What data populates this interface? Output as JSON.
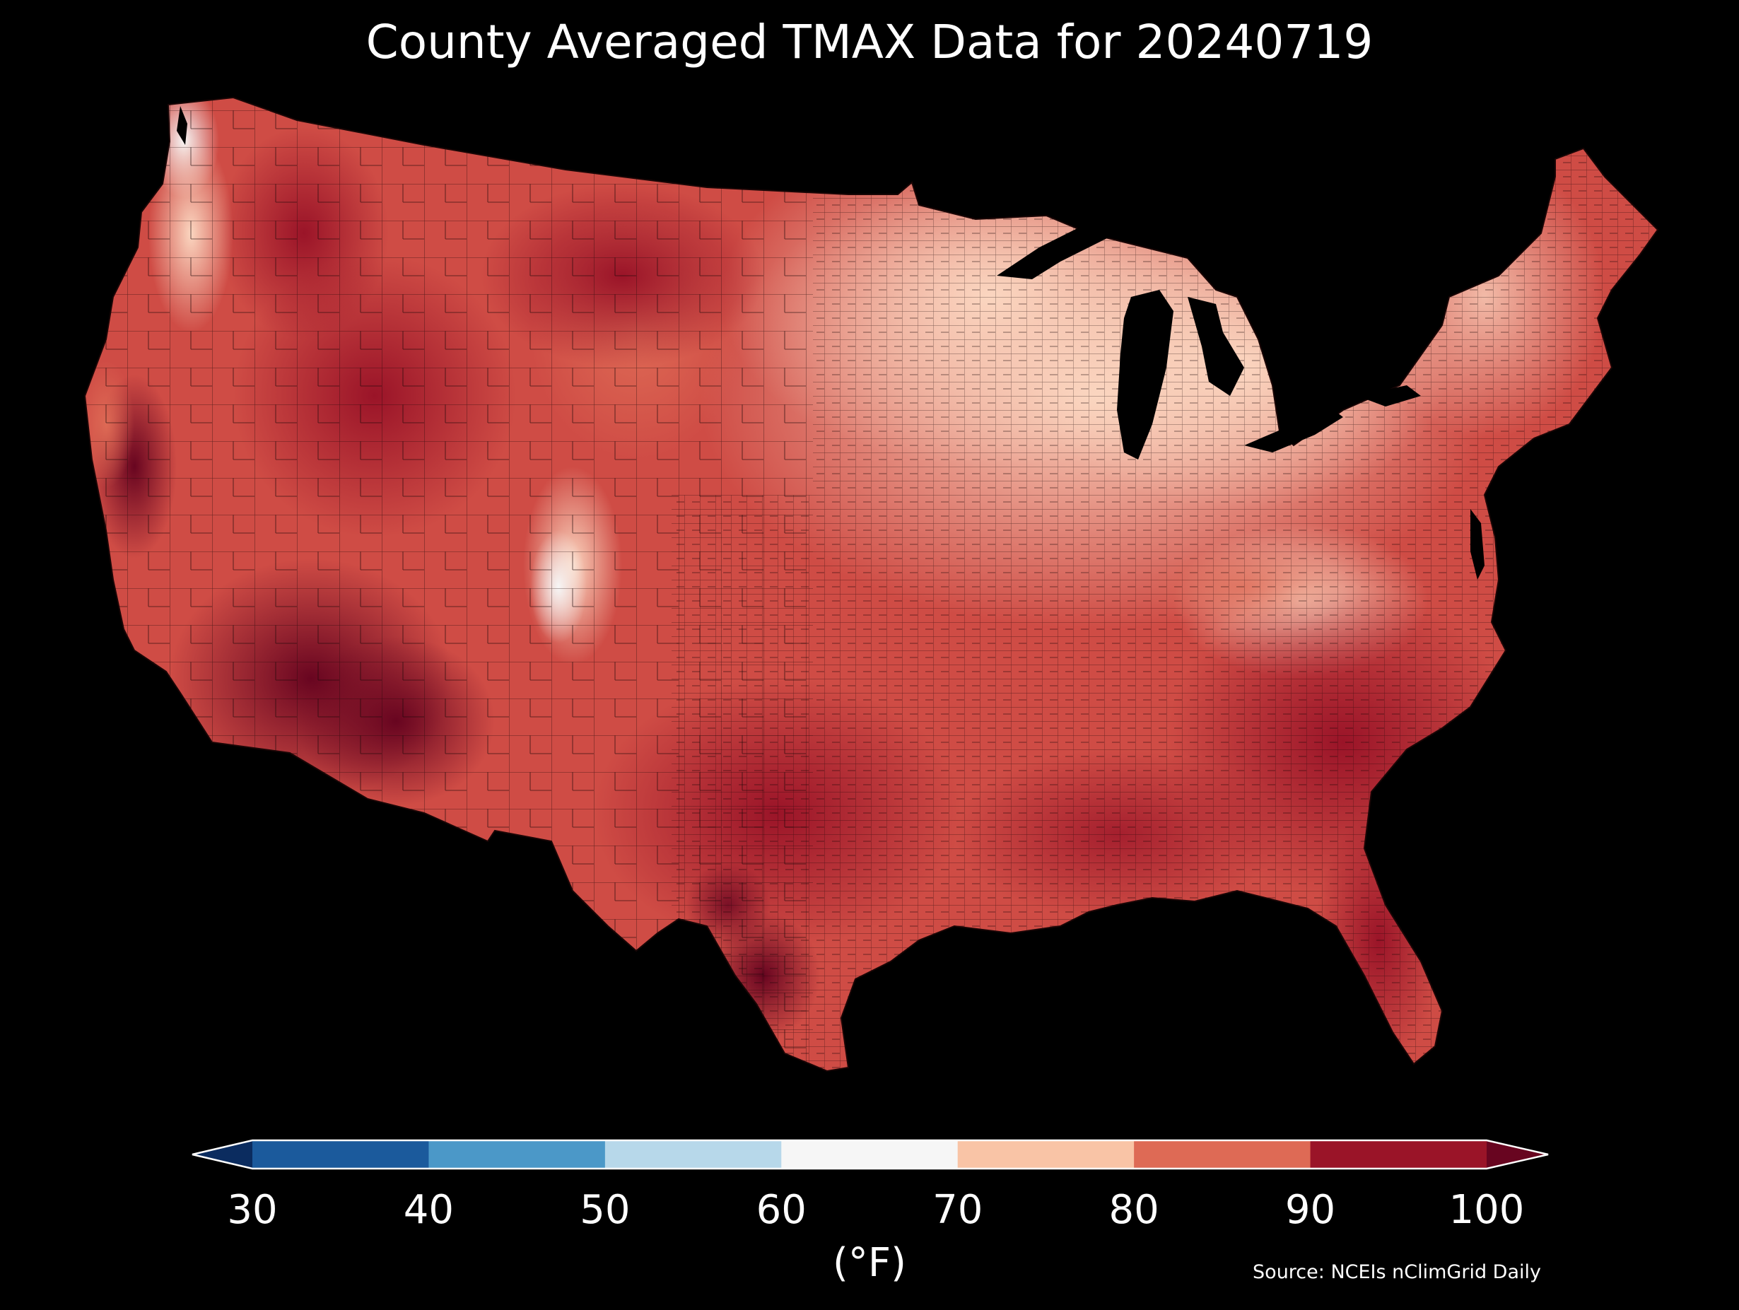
{
  "title": "County Averaged TMAX Data for 20240719",
  "colorbar": {
    "label": "(°F)",
    "ticks": [
      "30",
      "40",
      "50",
      "60",
      "70",
      "80",
      "90",
      "100"
    ],
    "bins": [
      {
        "range": "<30",
        "color": "#0b2c5f"
      },
      {
        "range": "30-40",
        "color": "#1b5a9c"
      },
      {
        "range": "40-50",
        "color": "#4b98c8"
      },
      {
        "range": "50-60",
        "color": "#b7d8ea"
      },
      {
        "range": "60-70",
        "color": "#f6f6f6"
      },
      {
        "range": "70-80",
        "color": "#f9c4a6"
      },
      {
        "range": "80-90",
        "color": "#de6a55"
      },
      {
        "range": "90-100",
        "color": "#9a1428"
      },
      {
        "range": ">100",
        "color": "#680520"
      }
    ]
  },
  "source": "Source: NCEIs nClimGrid Daily",
  "map": {
    "region": "Contiguous United States",
    "variable": "TMAX",
    "county_border_color": "#1a0606",
    "regions_tmax_bin": {
      "desert_southwest": ">100",
      "south_texas": ">100",
      "central_valley_california": ">100",
      "great_basin": "90-100",
      "northern_plains": "90-100",
      "southeast": "90-100",
      "florida": "90-100",
      "gulf_coast": "80-90",
      "central_plains": "80-90",
      "pacific_coast": "80-90",
      "colorado_rockies": "60-70",
      "midwest": "70-80",
      "great_lakes": "70-80",
      "appalachians": "70-80",
      "northeast": "70-80",
      "mid_atlantic": "80-90",
      "pacific_northwest_coast": "60-70"
    }
  }
}
